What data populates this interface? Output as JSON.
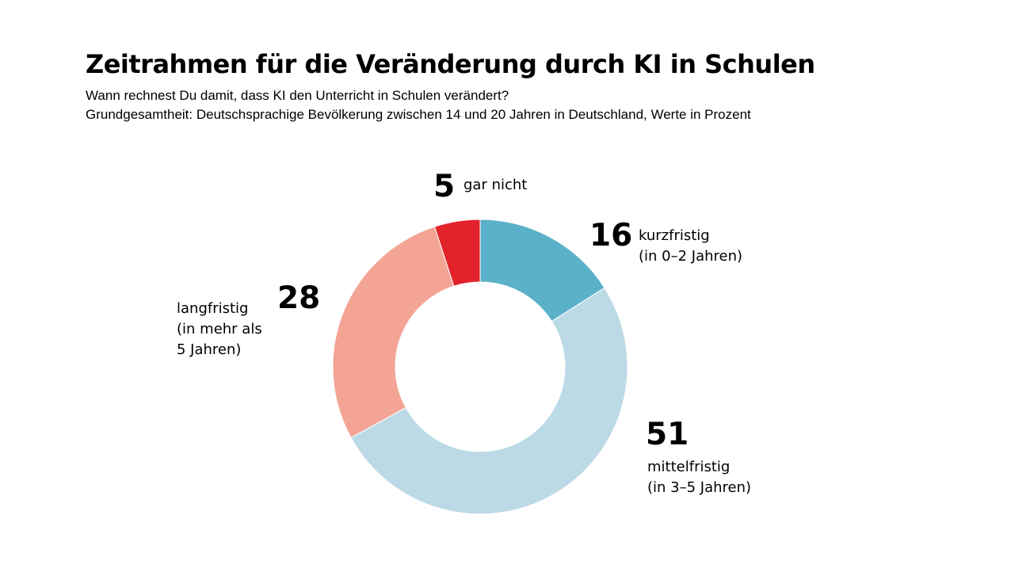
{
  "title": "Zeitrahmen für die Veränderung durch KI in Schulen",
  "subtitle_line1": "Wann rechnest Du damit, dass KI den Unterricht in Schulen verändert?",
  "subtitle_line2": "Grundgesamtheit: Deutschsprachige Bevölkerung zwischen 14 und 20 Jahren in Deutschland, Werte in Prozent",
  "chart_data": {
    "type": "pie",
    "donut": true,
    "unit": "Prozent",
    "start": "top",
    "direction": "clockwise",
    "slices": [
      {
        "key": "kurzfristig",
        "value": 16,
        "label_lines": [
          "kurzfristig",
          "(in 0–2 Jahren)"
        ],
        "color": "#5bb1c9"
      },
      {
        "key": "mittelfristig",
        "value": 51,
        "label_lines": [
          "mittelfristig",
          "(in 3–5 Jahren)"
        ],
        "color": "#bcdae6"
      },
      {
        "key": "langfristig",
        "value": 28,
        "label_lines": [
          "langfristig",
          "(in mehr als",
          "5 Jahren)"
        ],
        "color": "#f3a495"
      },
      {
        "key": "gar-nicht",
        "value": 5,
        "label_lines": [
          "gar nicht"
        ],
        "color": "#e3232c"
      }
    ]
  }
}
